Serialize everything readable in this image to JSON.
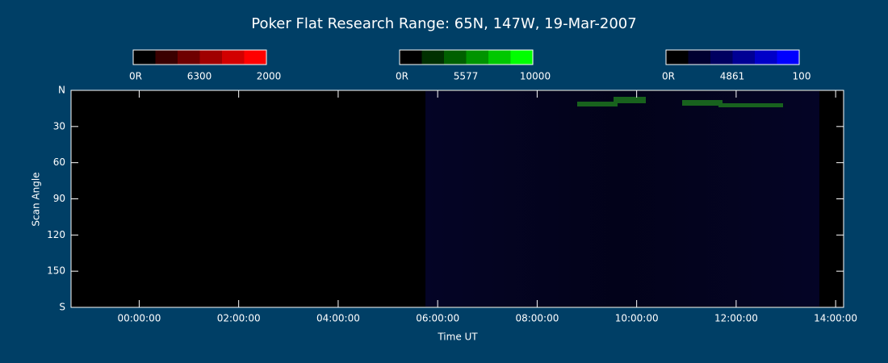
{
  "chart_data": {
    "type": "keogram",
    "title": "Poker Flat Research Range: 65N, 147W, 19-Mar-2007",
    "colorbars": [
      {
        "labels": [
          "0R",
          "6300",
          "2000"
        ],
        "colors": [
          "#000000",
          "#3a0000",
          "#6e0000",
          "#a00000",
          "#d20000",
          "#ff0000"
        ]
      },
      {
        "labels": [
          "0R",
          "5577",
          "10000"
        ],
        "colors": [
          "#000000",
          "#003000",
          "#006000",
          "#009400",
          "#00c800",
          "#00ff00"
        ]
      },
      {
        "labels": [
          "0R",
          "4861",
          "100"
        ],
        "colors": [
          "#000000",
          "#000030",
          "#000060",
          "#000094",
          "#0000c8",
          "#0000ff"
        ]
      }
    ],
    "ylabel": "Scan Angle",
    "xlabel": "Time UT",
    "ylim": [
      0,
      180
    ],
    "yticks": [
      {
        "value": 0,
        "label": "N"
      },
      30,
      60,
      90,
      120,
      150,
      {
        "value": 180,
        "label": "S"
      }
    ],
    "xlim": [
      -1.37,
      14.16
    ],
    "xticks": [
      {
        "value": 0,
        "label": "00:00:00"
      },
      {
        "value": 2,
        "label": "02:00:00"
      },
      {
        "value": 4,
        "label": "04:00:00"
      },
      {
        "value": 6,
        "label": "06:00:00"
      },
      {
        "value": 8,
        "label": "08:00:00"
      },
      {
        "value": 10,
        "label": "10:00:00"
      },
      {
        "value": 12,
        "label": "12:00:00"
      },
      {
        "value": 14,
        "label": "14:00:00"
      }
    ]
  }
}
